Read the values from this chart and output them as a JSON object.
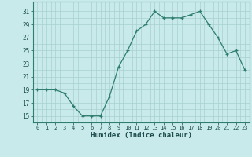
{
  "x": [
    0,
    1,
    2,
    3,
    4,
    5,
    6,
    7,
    8,
    9,
    10,
    11,
    12,
    13,
    14,
    15,
    16,
    17,
    18,
    19,
    20,
    21,
    22,
    23
  ],
  "y": [
    19,
    19,
    19,
    18.5,
    16.5,
    15,
    15,
    15,
    18,
    22.5,
    25,
    28,
    29,
    31,
    30,
    30,
    30,
    30.5,
    31,
    29,
    27,
    24.5,
    25,
    22
  ],
  "line_color": "#2e7d6e",
  "marker_color": "#2e7d6e",
  "bg_color": "#c8eaea",
  "grid_color": "#a8d0d0",
  "xlabel": "Humidex (Indice chaleur)",
  "ylabel_ticks": [
    15,
    17,
    19,
    21,
    23,
    25,
    27,
    29,
    31
  ],
  "xlim": [
    -0.5,
    23.5
  ],
  "ylim": [
    14,
    32.5
  ],
  "xticks": [
    0,
    1,
    2,
    3,
    4,
    5,
    6,
    7,
    8,
    9,
    10,
    11,
    12,
    13,
    14,
    15,
    16,
    17,
    18,
    19,
    20,
    21,
    22,
    23
  ],
  "font_color": "#1a4a4a",
  "tick_fontsize": 5.0,
  "xlabel_fontsize": 6.5
}
